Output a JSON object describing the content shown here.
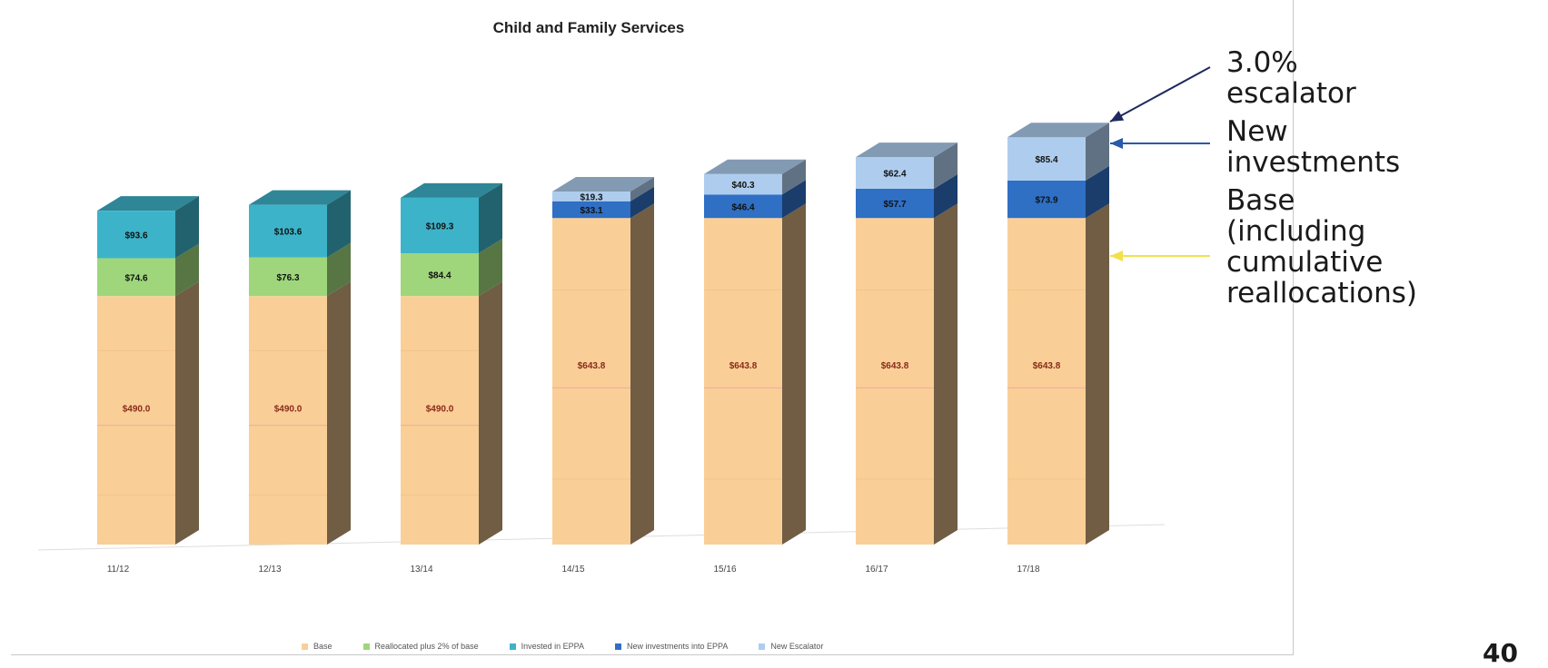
{
  "chart_data": {
    "type": "bar",
    "stacked": true,
    "three_d": true,
    "title": "Child and Family Services",
    "categories": [
      "11/12",
      "12/13",
      "13/14",
      "14/15",
      "15/16",
      "16/17",
      "17/18"
    ],
    "series": [
      {
        "name": "Base",
        "color": "#f9cf97",
        "values": [
          490.0,
          490.0,
          490.0,
          643.8,
          643.8,
          643.8,
          643.8
        ],
        "labels": [
          "$490.0",
          "$490.0",
          "$490.0",
          "$643.8",
          "$643.8",
          "$643.8",
          "$643.8"
        ]
      },
      {
        "name": "Reallocated plus 2% of base",
        "color": "#9fd67c",
        "values": [
          74.6,
          76.3,
          84.4,
          0,
          0,
          0,
          0
        ],
        "labels": [
          "$74.6",
          "$76.3",
          "$84.4",
          "",
          "",
          "",
          ""
        ]
      },
      {
        "name": "Invested in EPPA",
        "color": "#3db3c9",
        "values": [
          93.6,
          103.6,
          109.3,
          0,
          0,
          0,
          0
        ],
        "labels": [
          "$93.6",
          "$103.6",
          "$109.3",
          "",
          "",
          "",
          ""
        ]
      },
      {
        "name": "New investments into EPPA",
        "color": "#2f6fc4",
        "values": [
          0,
          0,
          0,
          33.1,
          46.4,
          57.7,
          73.9
        ],
        "labels": [
          "",
          "",
          "",
          "$33.1",
          "$46.4",
          "$57.7",
          "$73.9"
        ]
      },
      {
        "name": "New Escalator",
        "color": "#aecdee",
        "values": [
          0,
          0,
          0,
          19.3,
          40.3,
          62.4,
          85.4
        ],
        "labels": [
          "",
          "",
          "",
          "$19.3",
          "$40.3",
          "$62.4",
          "$85.4"
        ]
      }
    ],
    "ylim": [
      0,
      850
    ],
    "grid": false,
    "legend_position": "bottom"
  },
  "annotations": [
    {
      "lines": [
        "3.0%",
        "escalator"
      ],
      "arrow_color": "#1f2a5e"
    },
    {
      "lines": [
        "New",
        "investments"
      ],
      "arrow_color": "#2a5aa8"
    },
    {
      "lines": [
        "Base",
        "(including",
        "cumulative",
        "reallocations)"
      ],
      "arrow_color": "#f4e04a"
    }
  ],
  "page_number": "40"
}
